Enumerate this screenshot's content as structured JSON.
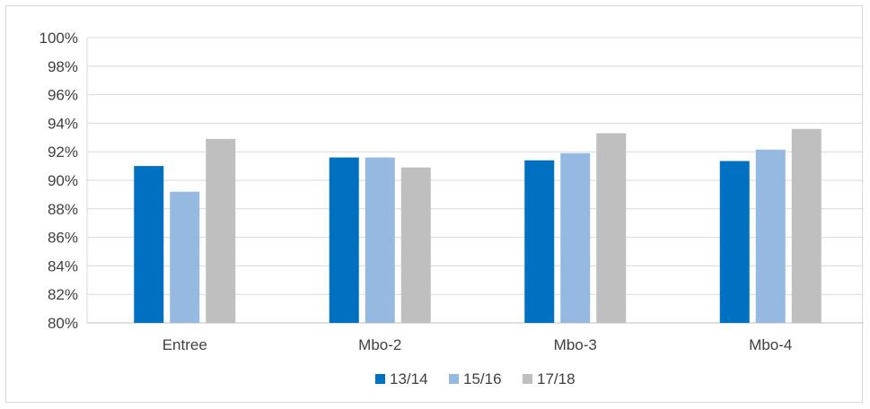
{
  "chart_data": {
    "type": "bar",
    "title": "",
    "xlabel": "",
    "ylabel": "",
    "categories": [
      "Entree",
      "Mbo-2",
      "Mbo-3",
      "Mbo-4"
    ],
    "series": [
      {
        "name": "13/14",
        "color": "#0070c0",
        "values": [
          91.0,
          91.6,
          91.4,
          91.35
        ]
      },
      {
        "name": "15/16",
        "color": "#95b9e1",
        "values": [
          89.2,
          91.6,
          91.9,
          92.15
        ]
      },
      {
        "name": "17/18",
        "color": "#bfbfbf",
        "values": [
          92.9,
          90.9,
          93.3,
          93.6
        ]
      }
    ],
    "ylim": [
      80,
      100
    ],
    "y_ticks": [
      80,
      82,
      84,
      86,
      88,
      90,
      92,
      94,
      96,
      98,
      100
    ],
    "y_tick_suffix": "%",
    "grid": true,
    "legend_position": "bottom"
  }
}
